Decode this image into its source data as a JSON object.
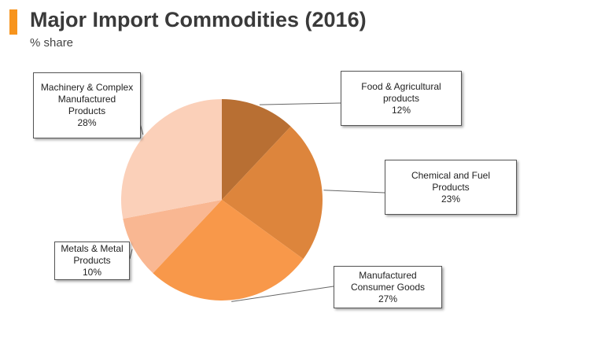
{
  "header": {
    "title": "Major Import Commodities (2016)",
    "subtitle": "% share",
    "accent_color": "#f7941d"
  },
  "chart_data": {
    "type": "pie",
    "title": "Major Import Commodities (2016)",
    "subtitle": "% share",
    "start": "12 o'clock",
    "direction": "clockwise",
    "slices": [
      {
        "name_lines": [
          "Food & Agricultural",
          "products"
        ],
        "value": 12,
        "value_label": "12%",
        "color": "#b86f33"
      },
      {
        "name_lines": [
          "Chemical and Fuel",
          "Products"
        ],
        "value": 23,
        "value_label": "23%",
        "color": "#dd853c"
      },
      {
        "name_lines": [
          "Manufactured",
          "Consumer Goods"
        ],
        "value": 27,
        "value_label": "27%",
        "color": "#f8984a"
      },
      {
        "name_lines": [
          "Metals & Metal",
          "Products"
        ],
        "value": 10,
        "value_label": "10%",
        "color": "#f9b792"
      },
      {
        "name_lines": [
          "Machinery & Complex",
          "Manufactured",
          "Products"
        ],
        "value": 28,
        "value_label": "28%",
        "color": "#fbd0b9"
      }
    ]
  }
}
